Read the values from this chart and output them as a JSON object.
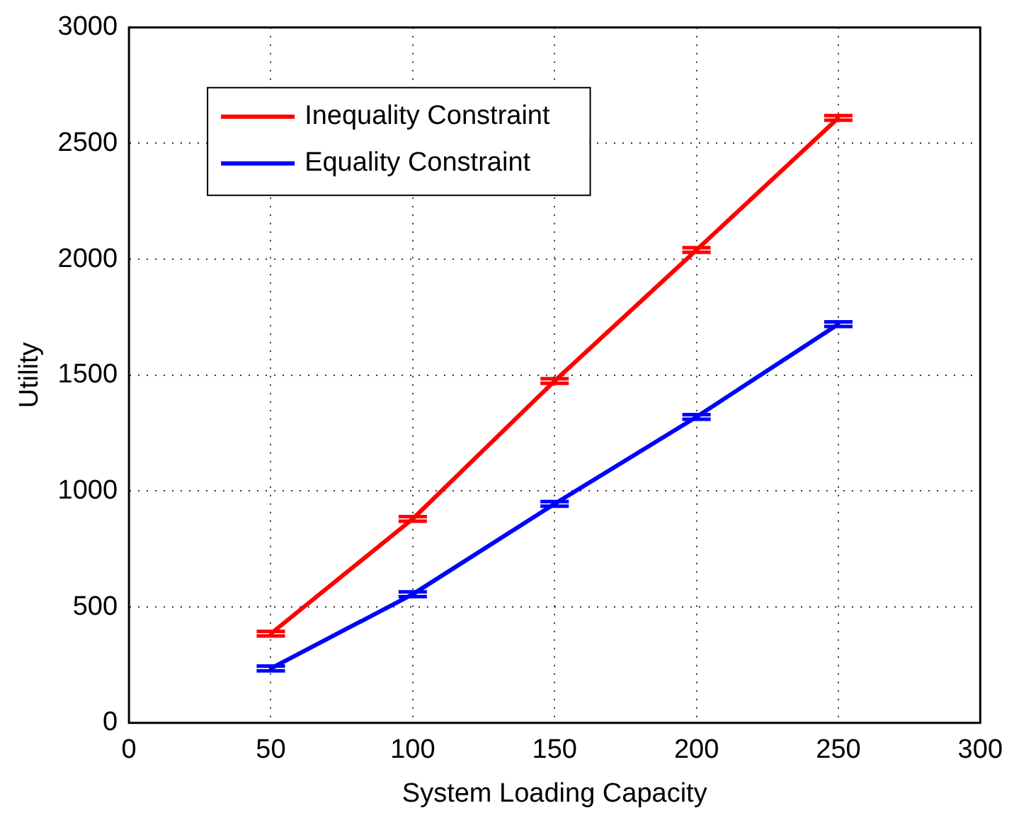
{
  "chart_data": {
    "type": "line",
    "xlabel": "System Loading Capacity",
    "ylabel": "Utility",
    "x": [
      50,
      100,
      150,
      200,
      250
    ],
    "series": [
      {
        "name": "Inequality Constraint",
        "color": "#ff0000",
        "values": [
          385,
          880,
          1475,
          2040,
          2610
        ],
        "errors": [
          10,
          10,
          10,
          10,
          10
        ]
      },
      {
        "name": "Equality Constraint",
        "color": "#0000ff",
        "values": [
          235,
          555,
          945,
          1320,
          1720
        ],
        "errors": [
          10,
          10,
          10,
          10,
          10
        ]
      }
    ],
    "xlim": [
      0,
      300
    ],
    "xticks": [
      0,
      50,
      100,
      150,
      200,
      250,
      300
    ],
    "ylim": [
      0,
      3000
    ],
    "yticks": [
      0,
      500,
      1000,
      1500,
      2000,
      2500,
      3000
    ],
    "grid": true,
    "legend": "top left",
    "marker": "none",
    "line_style": "solid"
  }
}
